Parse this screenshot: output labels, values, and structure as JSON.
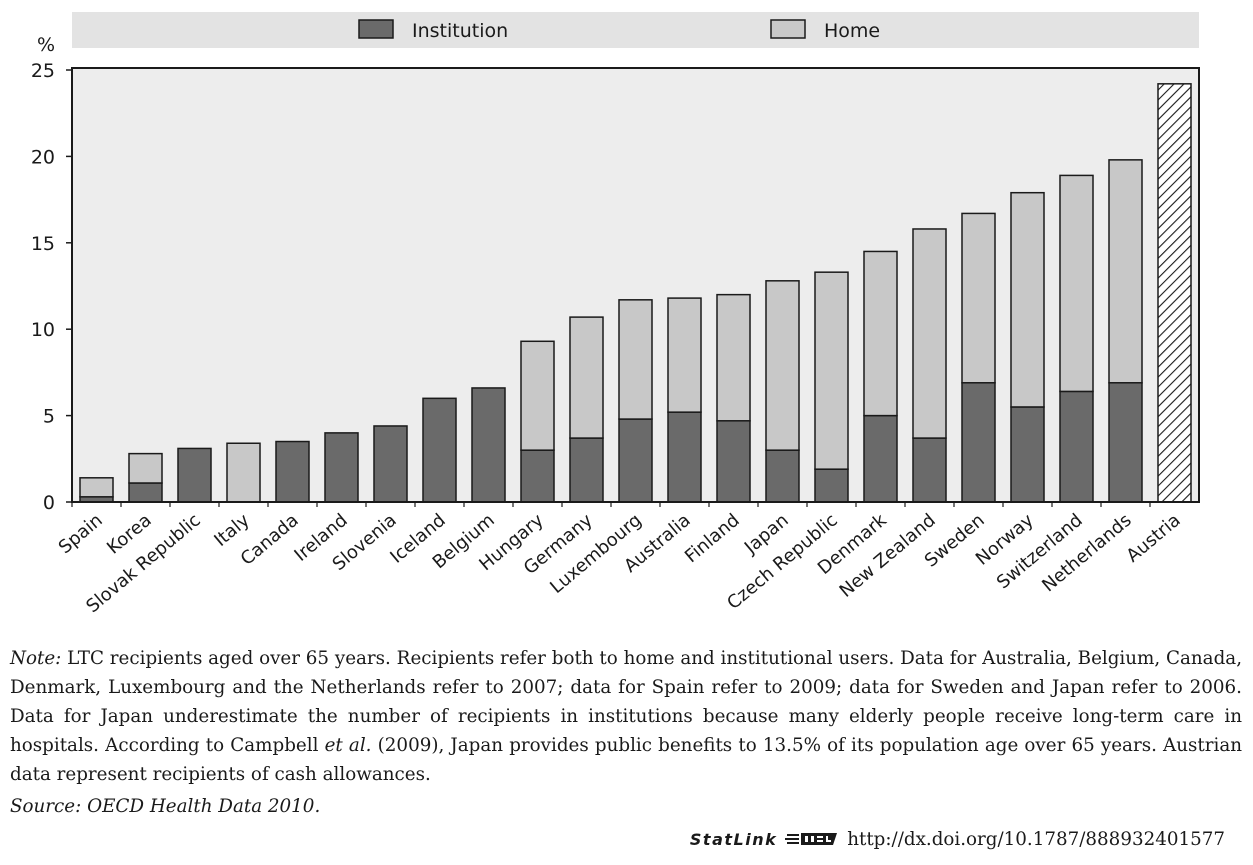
{
  "chart_data": {
    "type": "bar",
    "stacked": true,
    "ylabel": "%",
    "ylim": [
      0,
      25
    ],
    "yticks": [
      0,
      5,
      10,
      15,
      20,
      25
    ],
    "grid": false,
    "legend_position": "top",
    "categories": [
      "Spain",
      "Korea",
      "Slovak Republic",
      "Italy",
      "Canada",
      "Ireland",
      "Slovenia",
      "Iceland",
      "Belgium",
      "Hungary",
      "Germany",
      "Luxembourg",
      "Australia",
      "Finland",
      "Japan",
      "Czech Republic",
      "Denmark",
      "New Zealand",
      "Sweden",
      "Norway",
      "Switzerland",
      "Netherlands",
      "Austria"
    ],
    "series": [
      {
        "name": "Institution",
        "color": "#6a6a6a",
        "values": [
          0.3,
          1.1,
          3.1,
          0,
          3.5,
          4.0,
          4.4,
          6.0,
          6.6,
          3.0,
          3.7,
          4.8,
          5.2,
          4.7,
          3.0,
          1.9,
          5.0,
          3.7,
          6.9,
          5.5,
          6.4,
          6.9,
          0
        ]
      },
      {
        "name": "Home",
        "color": "#c8c8c8",
        "values": [
          1.1,
          1.7,
          0,
          3.4,
          0,
          0,
          0,
          0,
          0,
          6.3,
          7.0,
          6.9,
          6.6,
          7.3,
          9.8,
          11.4,
          9.5,
          12.1,
          9.8,
          12.4,
          12.5,
          12.9,
          0
        ]
      }
    ],
    "special_bars": [
      {
        "category": "Austria",
        "value": 24.2,
        "pattern": "diagonal-hatch",
        "color": "#ffffff"
      }
    ]
  },
  "note": {
    "label": "Note:",
    "text": "LTC recipients aged over 65 years. Recipients refer both to home and institutional users. Data for Australia, Belgium, Canada, Denmark, Luxembourg and the Netherlands refer to 2007; data for Spain refer to 2009; data for Sweden and Japan refer to 2006. Data for Japan underestimate the number of recipients in institutions because many elderly people receive long-term care in hospitals. According to Campbell",
    "et_al": "et al.",
    "text_after": "(2009), Japan provides public benefits to 13.5% of its population age over 65 years. Austrian data represent recipients of cash allowances."
  },
  "source": {
    "label": "Source:",
    "text": "OECD Health Data 2010."
  },
  "statlink": {
    "brand": "StatLink",
    "logo_icon": "statlink-logo-icon",
    "url": "http://dx.doi.org/10.1787/888932401577"
  }
}
